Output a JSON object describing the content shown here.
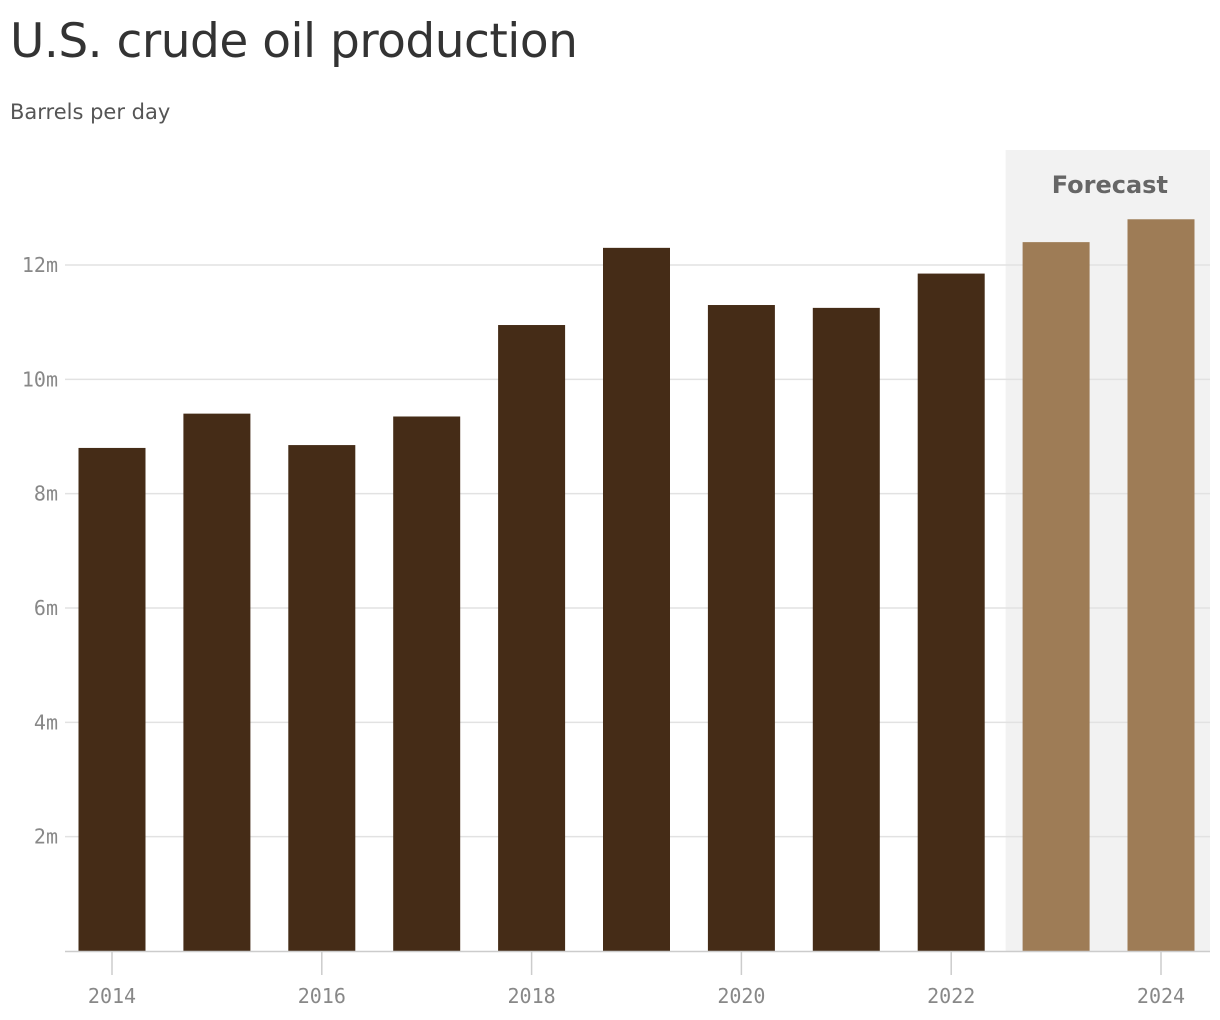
{
  "chart_data": {
    "type": "bar",
    "title": "U.S. crude oil production",
    "subtitle": "Barrels per day",
    "categories": [
      2014,
      2015,
      2016,
      2017,
      2018,
      2019,
      2020,
      2021,
      2022,
      2023,
      2024
    ],
    "values": [
      8.8,
      9.4,
      8.85,
      9.35,
      10.95,
      12.3,
      11.3,
      11.25,
      11.85,
      12.4,
      12.8
    ],
    "value_unit": "million barrels per day",
    "forecast_from": 2023,
    "forecast_label": "Forecast",
    "ylim": [
      0,
      14
    ],
    "yticks": [
      2,
      4,
      6,
      8,
      10,
      12
    ],
    "ytick_labels": [
      "2m",
      "4m",
      "6m",
      "8m",
      "10m",
      "12m"
    ],
    "xticks": [
      2014,
      2016,
      2018,
      2020,
      2022,
      2024
    ],
    "xtick_labels": [
      "2014",
      "2016",
      "2018",
      "2020",
      "2022",
      "2024"
    ],
    "grid": true,
    "colors": {
      "actual": "#452c17",
      "forecast": "#9e7c56",
      "forecast_band": "#f2f2f2",
      "grid": "#e2e2e2",
      "axis": "#cccccc"
    }
  }
}
